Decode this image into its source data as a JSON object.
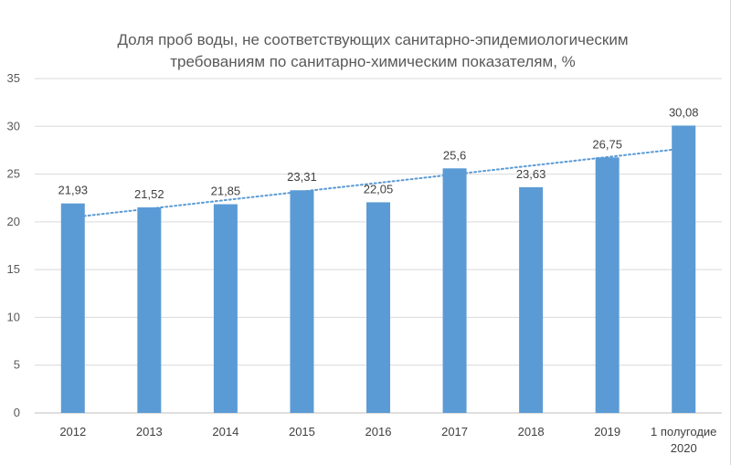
{
  "chart_data": {
    "type": "bar",
    "title_lines": [
      "Доля проб воды, не соответствующих санитарно-эпидемиологическим",
      "требованиям по санитарно-химическим показателям, %"
    ],
    "categories": [
      [
        "2012"
      ],
      [
        "2013"
      ],
      [
        "2014"
      ],
      [
        "2015"
      ],
      [
        "2016"
      ],
      [
        "2017"
      ],
      [
        "2018"
      ],
      [
        "2019"
      ],
      [
        "1 полугодие",
        "2020"
      ]
    ],
    "values": [
      21.93,
      21.52,
      21.85,
      23.31,
      22.05,
      25.6,
      23.63,
      26.75,
      30.08
    ],
    "value_labels": [
      "21,93",
      "21,52",
      "21,85",
      "23,31",
      "22,05",
      "25,6",
      "23,63",
      "26,75",
      "30,08"
    ],
    "ylim": [
      0,
      35
    ],
    "yticks": [
      0,
      5,
      10,
      15,
      20,
      25,
      30,
      35
    ],
    "grid": true,
    "trendline": {
      "type": "linear",
      "style": "dotted"
    },
    "bar_color": "#5b9bd5",
    "trend_color": "#5b9bd5",
    "grid_color": "#d9d9d9"
  }
}
